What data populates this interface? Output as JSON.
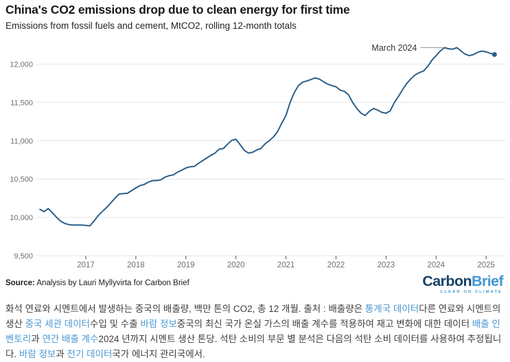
{
  "chart_data": {
    "type": "line",
    "title": "China's CO2 emissions drop due to clean energy for first time",
    "subtitle": "Emissions from fossil fuels and cement, MtCO2, rolling 12-month totals",
    "unit": "MtCO2",
    "grid": true,
    "legend": "none",
    "ylim": [
      9500,
      12400
    ],
    "yticks": [
      {
        "value": 9500,
        "label": "9,500"
      },
      {
        "value": 10000,
        "label": "10,000"
      },
      {
        "value": 10500,
        "label": "10,500"
      },
      {
        "value": 11000,
        "label": "11,000"
      },
      {
        "value": 11500,
        "label": "11,500"
      },
      {
        "value": 12000,
        "label": "12,000"
      }
    ],
    "xticks": [
      {
        "value": 2017,
        "label": "2017"
      },
      {
        "value": 2018,
        "label": "2018"
      },
      {
        "value": 2019,
        "label": "2019"
      },
      {
        "value": 2020,
        "label": "2020"
      },
      {
        "value": 2021,
        "label": "2021"
      },
      {
        "value": 2022,
        "label": "2022"
      },
      {
        "value": 2023,
        "label": "2023"
      },
      {
        "value": 2024,
        "label": "2024"
      },
      {
        "value": 2025,
        "label": "2025"
      }
    ],
    "annotation": {
      "label": "March 2024",
      "month": "2024-03",
      "value": 12215
    },
    "series": [
      {
        "name": "China CO2 emissions, rolling 12-month total (MtCO2)",
        "months": [
          "2016-02",
          "2016-03",
          "2016-04",
          "2016-05",
          "2016-06",
          "2016-07",
          "2016-08",
          "2016-09",
          "2016-10",
          "2016-11",
          "2016-12",
          "2017-01",
          "2017-02",
          "2017-03",
          "2017-04",
          "2017-05",
          "2017-06",
          "2017-07",
          "2017-08",
          "2017-09",
          "2017-10",
          "2017-11",
          "2017-12",
          "2018-01",
          "2018-02",
          "2018-03",
          "2018-04",
          "2018-05",
          "2018-06",
          "2018-07",
          "2018-08",
          "2018-09",
          "2018-10",
          "2018-11",
          "2018-12",
          "2019-01",
          "2019-02",
          "2019-03",
          "2019-04",
          "2019-05",
          "2019-06",
          "2019-07",
          "2019-08",
          "2019-09",
          "2019-10",
          "2019-11",
          "2019-12",
          "2020-01",
          "2020-02",
          "2020-03",
          "2020-04",
          "2020-05",
          "2020-06",
          "2020-07",
          "2020-08",
          "2020-09",
          "2020-10",
          "2020-11",
          "2020-12",
          "2021-01",
          "2021-02",
          "2021-03",
          "2021-04",
          "2021-05",
          "2021-06",
          "2021-07",
          "2021-08",
          "2021-09",
          "2021-10",
          "2021-11",
          "2021-12",
          "2022-01",
          "2022-02",
          "2022-03",
          "2022-04",
          "2022-05",
          "2022-06",
          "2022-07",
          "2022-08",
          "2022-09",
          "2022-10",
          "2022-11",
          "2022-12",
          "2023-01",
          "2023-02",
          "2023-03",
          "2023-04",
          "2023-05",
          "2023-06",
          "2023-07",
          "2023-08",
          "2023-09",
          "2023-10",
          "2023-11",
          "2023-12",
          "2024-01",
          "2024-02",
          "2024-03",
          "2024-04",
          "2024-05",
          "2024-06",
          "2024-07",
          "2024-08",
          "2024-09",
          "2024-10",
          "2024-11",
          "2024-12",
          "2025-01",
          "2025-02",
          "2025-03"
        ],
        "values": [
          10105,
          10075,
          10115,
          10060,
          10000,
          9950,
          9920,
          9905,
          9900,
          9900,
          9900,
          9895,
          9890,
          9955,
          10025,
          10080,
          10130,
          10190,
          10250,
          10305,
          10310,
          10315,
          10350,
          10385,
          10415,
          10430,
          10460,
          10480,
          10480,
          10490,
          10525,
          10545,
          10555,
          10590,
          10615,
          10645,
          10660,
          10665,
          10705,
          10740,
          10775,
          10810,
          10840,
          10890,
          10900,
          10955,
          11005,
          11020,
          10950,
          10875,
          10840,
          10850,
          10880,
          10900,
          10960,
          11000,
          11050,
          11120,
          11230,
          11330,
          11500,
          11630,
          11720,
          11765,
          11780,
          11800,
          11820,
          11805,
          11770,
          11740,
          11720,
          11705,
          11660,
          11645,
          11600,
          11500,
          11420,
          11360,
          11330,
          11385,
          11420,
          11400,
          11370,
          11360,
          11390,
          11500,
          11580,
          11670,
          11750,
          11810,
          11860,
          11890,
          11910,
          11970,
          12050,
          12110,
          12170,
          12215,
          12200,
          12195,
          12215,
          12170,
          12130,
          12110,
          12125,
          12155,
          12170,
          12160,
          12140,
          12125
        ]
      }
    ],
    "colors": {
      "line": "#2b5f8a",
      "grid": "#e6e6e6",
      "axis_text": "#6e6e6e",
      "tick": "#4d4d4d",
      "annotation_text": "#333333",
      "connector": "#999999"
    }
  },
  "footer": {
    "source_label": "Source:",
    "source_text": " Analysis by Lauri Myllyvirta for Carbon Brief"
  },
  "logo": {
    "word1": "Carbon",
    "word2": "Brief",
    "tagline": "CLEAR ON CLIMATE",
    "word1_color": "#16436a",
    "word2_color": "#3f97d0"
  },
  "description": {
    "link_color": "#4a97d2",
    "segments": [
      {
        "text": "화석 연료와 시멘트에서 발생하는 중국의 배출량, 백만 톤의 CO2, 총 12 개월. 출처 : 배출량은 ",
        "link": false
      },
      {
        "text": "통계국 데이터",
        "link": true
      },
      {
        "text": "다른 연료와 시멘트의 생산 ",
        "link": false
      },
      {
        "text": "중국 세관 데이터",
        "link": true
      },
      {
        "text": "수입 및 수출 ",
        "link": false
      },
      {
        "text": "바람 정보",
        "link": true
      },
      {
        "text": "중국의 최신 국가 온실 가스의 배출 계수를 적용하여 재고 변화에 대한 데이터 ",
        "link": false
      },
      {
        "text": "배출 인벤토리",
        "link": true
      },
      {
        "text": "과 ",
        "link": false
      },
      {
        "text": "연간 배출 계수",
        "link": true
      },
      {
        "text": "2024 년까지 시멘트 생산 톤당. 석탄 소비의 부문 별 분석은 다음의 석탄 소비 데이터를 사용하여 추정됩니다. ",
        "link": false
      },
      {
        "text": "바람 정보",
        "link": true
      },
      {
        "text": "과 ",
        "link": false
      },
      {
        "text": "전기 데이터",
        "link": true
      },
      {
        "text": "국가 에너지 관리국에서.",
        "link": false
      }
    ]
  }
}
